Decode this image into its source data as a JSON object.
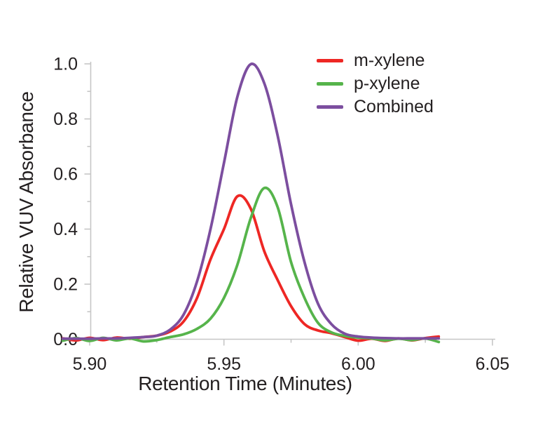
{
  "chart_data": {
    "type": "line",
    "title": "",
    "xlabel": "Retention Time (Minutes)",
    "ylabel": "Relative VUV Absorbance",
    "xlim": [
      5.889,
      6.055
    ],
    "ylim": [
      0,
      1.0
    ],
    "grid": false,
    "legend_position": "top-right",
    "x_ticks": {
      "major": [
        5.9,
        5.95,
        6.0,
        6.05
      ],
      "labels": [
        "5.90",
        "5.95",
        "6.00",
        "6.05"
      ],
      "minor": [
        5.925,
        5.975,
        6.025
      ]
    },
    "y_ticks": {
      "major": [
        0.0,
        0.2,
        0.4,
        0.6,
        0.8,
        1.0
      ],
      "labels": [
        "0.0",
        "0.2",
        "0.4",
        "0.6",
        "0.8",
        "1.0"
      ],
      "minor": [
        0.1,
        0.3,
        0.5,
        0.7,
        0.9
      ]
    },
    "x": [
      5.89,
      5.895,
      5.9,
      5.905,
      5.91,
      5.915,
      5.92,
      5.925,
      5.93,
      5.935,
      5.94,
      5.945,
      5.95,
      5.955,
      5.96,
      5.965,
      5.97,
      5.975,
      5.98,
      5.985,
      5.99,
      5.995,
      6.0,
      6.005,
      6.01,
      6.015,
      6.02,
      6.025,
      6.03
    ],
    "series": [
      {
        "name": "m-xylene",
        "color": "#ee2724",
        "peak_time": 5.956,
        "peak_value": 0.52,
        "values": [
          0.003,
          -0.004,
          0.005,
          -0.003,
          0.006,
          0.002,
          0.008,
          0.013,
          0.028,
          0.065,
          0.15,
          0.29,
          0.4,
          0.519,
          0.474,
          0.32,
          0.215,
          0.12,
          0.055,
          0.032,
          0.022,
          0.008,
          -0.005,
          0.002,
          -0.006,
          0.003,
          -0.004,
          0.004,
          0.01
        ]
      },
      {
        "name": "p-xylene",
        "color": "#56b44b",
        "peak_time": 5.965,
        "peak_value": 0.55,
        "values": [
          -0.005,
          0.004,
          -0.006,
          0.005,
          -0.004,
          0.003,
          -0.008,
          -0.003,
          0.008,
          0.018,
          0.038,
          0.075,
          0.15,
          0.27,
          0.44,
          0.549,
          0.48,
          0.28,
          0.15,
          0.06,
          0.025,
          0.012,
          0.006,
          0.003,
          -0.004,
          0.002,
          -0.003,
          0.003,
          -0.01
        ]
      },
      {
        "name": "Combined",
        "color": "#7c4e9f",
        "peak_time": 5.96,
        "peak_value": 1.0,
        "values": [
          0.002,
          0.002,
          0.002,
          0.003,
          0.003,
          0.005,
          0.008,
          0.013,
          0.035,
          0.09,
          0.21,
          0.4,
          0.64,
          0.88,
          0.999,
          0.93,
          0.74,
          0.49,
          0.28,
          0.13,
          0.055,
          0.02,
          0.01,
          0.006,
          0.004,
          0.003,
          0.003,
          0.003,
          0.003
        ]
      }
    ]
  }
}
